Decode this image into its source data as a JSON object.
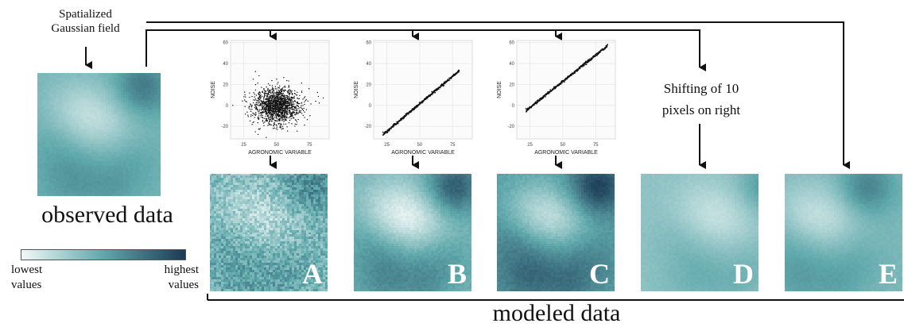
{
  "source_label": {
    "line1": "Spatialized",
    "line2": "Gaussian field"
  },
  "observed_label": "observed data",
  "modeled_label": "modeled data",
  "shift_note": {
    "line1": "Shifting of 10",
    "line2": "pixels on right"
  },
  "legend": {
    "low": {
      "line1": "lowest",
      "line2": "values"
    },
    "high": {
      "line1": "highest",
      "line2": "values"
    },
    "colors": [
      "#f2f8f7",
      "#5fa8ab",
      "#1c3a55"
    ]
  },
  "panels": [
    {
      "id": "A",
      "letter": "A"
    },
    {
      "id": "B",
      "letter": "B"
    },
    {
      "id": "C",
      "letter": "C"
    },
    {
      "id": "D",
      "letter": "D"
    },
    {
      "id": "E",
      "letter": "E"
    }
  ],
  "chart_data": [
    {
      "type": "scatter",
      "panel": "A",
      "xlabel": "AGRONOMIC VARIABLE",
      "ylabel": "NOISE",
      "xticks": [
        25,
        50,
        75
      ],
      "yticks": [
        -20,
        0,
        20,
        40,
        60
      ],
      "xlim": [
        15,
        90
      ],
      "ylim": [
        -32,
        62
      ],
      "description_of_points": "dense cloud centered near (50, 0), spread roughly 25–75 in x and -20 to 20 in y"
    },
    {
      "type": "scatter",
      "panel": "B",
      "xlabel": "AGRONOMIC VARIABLE",
      "ylabel": "NOISE",
      "xticks": [
        25,
        50,
        75
      ],
      "yticks": [
        -20,
        0,
        20,
        40,
        60
      ],
      "xlim": [
        15,
        90
      ],
      "ylim": [
        -32,
        62
      ],
      "line": {
        "x": [
          22,
          80
        ],
        "y": [
          -28,
          33
        ]
      }
    },
    {
      "type": "scatter",
      "panel": "C",
      "xlabel": "AGRONOMIC VARIABLE",
      "ylabel": "NOISE",
      "xticks": [
        25,
        50,
        75
      ],
      "yticks": [
        -20,
        0,
        20,
        40,
        60
      ],
      "xlim": [
        15,
        90
      ],
      "ylim": [
        -32,
        62
      ],
      "line": {
        "x": [
          22,
          84
        ],
        "y": [
          -5,
          57
        ]
      }
    }
  ]
}
